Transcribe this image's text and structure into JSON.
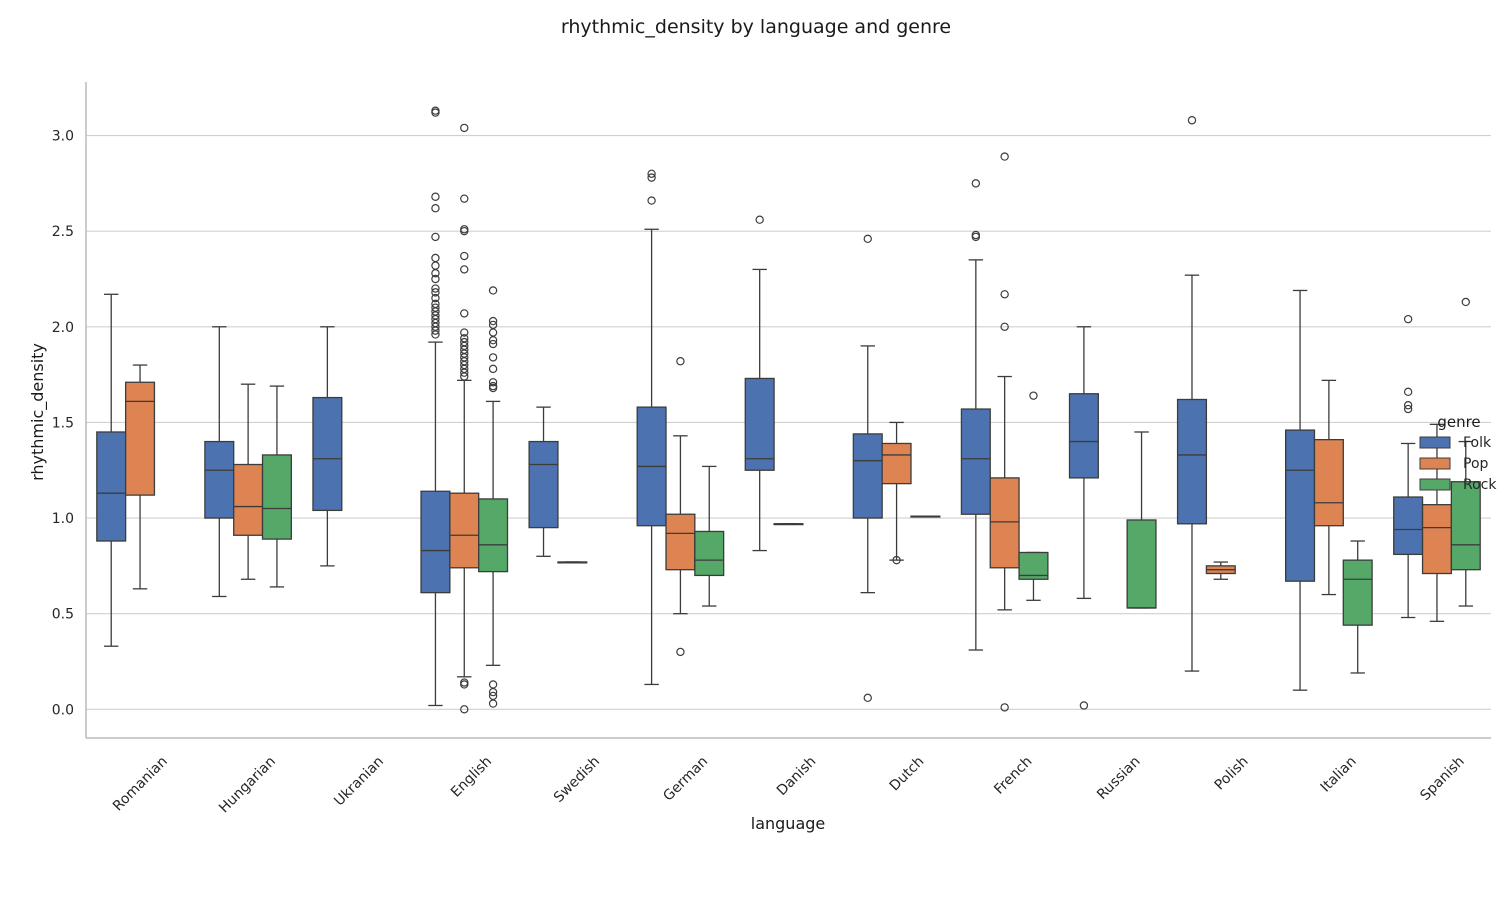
{
  "chart_data": {
    "type": "box",
    "title": "rhythmic_density by language and genre",
    "xlabel": "language",
    "ylabel": "rhythmic_density",
    "ylim": [
      -0.15,
      3.28
    ],
    "yticks": [
      0.0,
      0.5,
      1.0,
      1.5,
      2.0,
      2.5,
      3.0
    ],
    "ytick_labels": [
      "0.0",
      "0.5",
      "1.0",
      "1.5",
      "2.0",
      "2.5",
      "3.0"
    ],
    "grid": true,
    "legend": {
      "title": "genre",
      "placement": "right"
    },
    "categories": [
      "Romanian",
      "Hungarian",
      "Ukranian",
      "English",
      "Swedish",
      "German",
      "Danish",
      "Dutch",
      "French",
      "Russian",
      "Polish",
      "Italian",
      "Spanish"
    ],
    "series": [
      {
        "name": "Folk",
        "color": "#4c72b0",
        "boxes": [
          {
            "category": "Romanian",
            "whislo": 0.33,
            "q1": 0.88,
            "med": 1.13,
            "q3": 1.45,
            "whishi": 2.17,
            "fliers": []
          },
          {
            "category": "Hungarian",
            "whislo": 0.59,
            "q1": 1.0,
            "med": 1.25,
            "q3": 1.4,
            "whishi": 2.0,
            "fliers": []
          },
          {
            "category": "Ukranian",
            "whislo": 0.75,
            "q1": 1.04,
            "med": 1.31,
            "q3": 1.63,
            "whishi": 2.0,
            "fliers": []
          },
          {
            "category": "English",
            "whislo": 0.02,
            "q1": 0.61,
            "med": 0.83,
            "q3": 1.14,
            "whishi": 1.92,
            "fliers": [
              1.96,
              1.98,
              2.0,
              2.02,
              2.04,
              2.06,
              2.08,
              2.1,
              2.12,
              2.15,
              2.18,
              2.2,
              2.25,
              2.28,
              2.32,
              2.36,
              2.47,
              2.62,
              2.68,
              3.12,
              3.13
            ]
          },
          {
            "category": "Swedish",
            "whislo": 0.8,
            "q1": 0.95,
            "med": 1.28,
            "q3": 1.4,
            "whishi": 1.58,
            "fliers": []
          },
          {
            "category": "German",
            "whislo": 0.13,
            "q1": 0.96,
            "med": 1.27,
            "q3": 1.58,
            "whishi": 2.51,
            "fliers": [
              2.66,
              2.78,
              2.8
            ]
          },
          {
            "category": "Danish",
            "whislo": 0.83,
            "q1": 1.25,
            "med": 1.31,
            "q3": 1.73,
            "whishi": 2.3,
            "fliers": [
              2.56
            ]
          },
          {
            "category": "Dutch",
            "whislo": 0.61,
            "q1": 1.0,
            "med": 1.3,
            "q3": 1.44,
            "whishi": 1.9,
            "fliers": [
              0.06,
              2.46
            ]
          },
          {
            "category": "French",
            "whislo": 0.31,
            "q1": 1.02,
            "med": 1.31,
            "q3": 1.57,
            "whishi": 2.35,
            "fliers": [
              2.47,
              2.48,
              2.75
            ]
          },
          {
            "category": "Russian",
            "whislo": 0.58,
            "q1": 1.21,
            "med": 1.4,
            "q3": 1.65,
            "whishi": 2.0,
            "fliers": [
              0.02
            ]
          },
          {
            "category": "Polish",
            "whislo": 0.2,
            "q1": 0.97,
            "med": 1.33,
            "q3": 1.62,
            "whishi": 2.27,
            "fliers": [
              3.08
            ]
          },
          {
            "category": "Italian",
            "whislo": 0.1,
            "q1": 0.67,
            "med": 1.25,
            "q3": 1.46,
            "whishi": 2.19,
            "fliers": []
          },
          {
            "category": "Spanish",
            "whislo": 0.48,
            "q1": 0.81,
            "med": 0.94,
            "q3": 1.11,
            "whishi": 1.39,
            "fliers": [
              1.57,
              1.59,
              1.66,
              2.04
            ]
          }
        ]
      },
      {
        "name": "Pop",
        "color": "#dd8452",
        "boxes": [
          {
            "category": "Romanian",
            "whislo": 0.63,
            "q1": 1.12,
            "med": 1.61,
            "q3": 1.71,
            "whishi": 1.8,
            "fliers": []
          },
          {
            "category": "Hungarian",
            "whislo": 0.68,
            "q1": 0.91,
            "med": 1.06,
            "q3": 1.28,
            "whishi": 1.7,
            "fliers": []
          },
          {
            "category": "English",
            "whislo": 0.17,
            "q1": 0.74,
            "med": 0.91,
            "q3": 1.13,
            "whishi": 1.72,
            "fliers": [
              0.0,
              0.13,
              0.14,
              1.74,
              1.76,
              1.78,
              1.8,
              1.82,
              1.84,
              1.86,
              1.88,
              1.9,
              1.92,
              1.94,
              1.97,
              2.07,
              2.3,
              2.37,
              2.5,
              2.51,
              2.67,
              3.04
            ]
          },
          {
            "category": "Swedish",
            "whislo": 0.77,
            "q1": 0.77,
            "med": 0.77,
            "q3": 0.77,
            "whishi": 0.77,
            "fliers": []
          },
          {
            "category": "German",
            "whislo": 0.5,
            "q1": 0.73,
            "med": 0.92,
            "q3": 1.02,
            "whishi": 1.43,
            "fliers": [
              0.3,
              1.82
            ]
          },
          {
            "category": "Danish",
            "whislo": 0.97,
            "q1": 0.97,
            "med": 0.97,
            "q3": 0.97,
            "whishi": 0.97,
            "fliers": []
          },
          {
            "category": "Dutch",
            "whislo": 0.78,
            "q1": 1.18,
            "med": 1.33,
            "q3": 1.39,
            "whishi": 1.5,
            "fliers": [
              0.78
            ]
          },
          {
            "category": "French",
            "whislo": 0.52,
            "q1": 0.74,
            "med": 0.98,
            "q3": 1.21,
            "whishi": 1.74,
            "fliers": [
              0.01,
              2.0,
              2.17,
              2.89
            ]
          },
          {
            "category": "Polish",
            "whislo": 0.68,
            "q1": 0.71,
            "med": 0.73,
            "q3": 0.75,
            "whishi": 0.77,
            "fliers": []
          },
          {
            "category": "Italian",
            "whislo": 0.6,
            "q1": 0.96,
            "med": 1.08,
            "q3": 1.41,
            "whishi": 1.72,
            "fliers": []
          },
          {
            "category": "Spanish",
            "whislo": 0.46,
            "q1": 0.71,
            "med": 0.95,
            "q3": 1.07,
            "whishi": 1.49,
            "fliers": []
          }
        ]
      },
      {
        "name": "Rock",
        "color": "#55a868",
        "boxes": [
          {
            "category": "Hungarian",
            "whislo": 0.64,
            "q1": 0.89,
            "med": 1.05,
            "q3": 1.33,
            "whishi": 1.69,
            "fliers": []
          },
          {
            "category": "English",
            "whislo": 0.23,
            "q1": 0.72,
            "med": 0.86,
            "q3": 1.1,
            "whishi": 1.61,
            "fliers": [
              0.03,
              0.07,
              0.09,
              0.13,
              1.68,
              1.69,
              1.71,
              1.78,
              1.84,
              1.91,
              1.93,
              1.97,
              2.01,
              2.03,
              2.19
            ]
          },
          {
            "category": "German",
            "whislo": 0.54,
            "q1": 0.7,
            "med": 0.78,
            "q3": 0.93,
            "whishi": 1.27,
            "fliers": []
          },
          {
            "category": "Dutch",
            "whislo": 1.01,
            "q1": 1.01,
            "med": 1.01,
            "q3": 1.01,
            "whishi": 1.01,
            "fliers": []
          },
          {
            "category": "French",
            "whislo": 0.57,
            "q1": 0.68,
            "med": 0.7,
            "q3": 0.82,
            "whishi": 0.82,
            "fliers": [
              1.64
            ]
          },
          {
            "category": "Russian",
            "whislo": 0.53,
            "q1": 0.53,
            "med": 0.53,
            "q3": 0.99,
            "whishi": 1.45,
            "fliers": []
          },
          {
            "category": "Italian",
            "whislo": 0.19,
            "q1": 0.44,
            "med": 0.68,
            "q3": 0.78,
            "whishi": 0.88,
            "fliers": []
          },
          {
            "category": "Spanish",
            "whislo": 0.54,
            "q1": 0.73,
            "med": 0.86,
            "q3": 1.19,
            "whishi": 1.4,
            "fliers": [
              2.13
            ]
          }
        ]
      }
    ]
  }
}
